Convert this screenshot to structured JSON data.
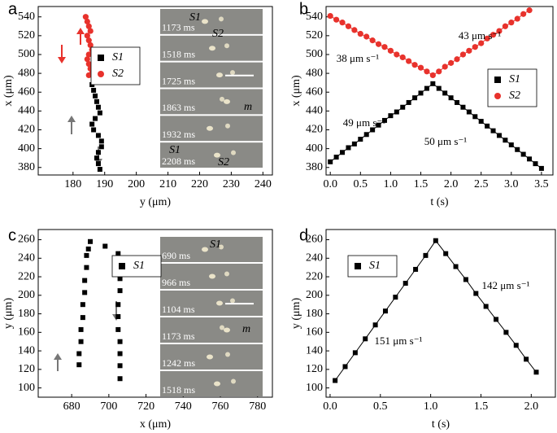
{
  "chart_data": [
    {
      "type": "scatter",
      "panel_label": "a",
      "xlabel": "y (μm)",
      "ylabel": "x (μm)",
      "xlim": [
        169,
        243
      ],
      "xticks": [
        180,
        190,
        200,
        210,
        220,
        230,
        240
      ],
      "ylim": [
        372,
        551
      ],
      "yticks": [
        380,
        400,
        420,
        440,
        460,
        480,
        500,
        520,
        540
      ],
      "series": [
        {
          "name": "S1",
          "color": "#000000",
          "marker": "square",
          "x": [
            186,
            186.5,
            187,
            187.5,
            188,
            188.5,
            187,
            186,
            186.5,
            188,
            189,
            189,
            188,
            187.5,
            188,
            188.5
          ],
          "values": [
            468,
            462,
            456,
            450,
            444,
            438,
            432,
            426,
            420,
            414,
            408,
            402,
            396,
            390,
            384,
            378
          ]
        },
        {
          "name": "S2",
          "color": "#e8322c",
          "marker": "circle",
          "x": [
            184,
            184.5,
            185,
            185.5,
            184.5,
            185,
            185.5,
            186,
            185,
            184.5,
            185,
            185.5,
            186,
            185
          ],
          "values": [
            540,
            535,
            530,
            525,
            520,
            515,
            510,
            505,
            500,
            495,
            490,
            485,
            480,
            478
          ]
        }
      ],
      "inset_labels": [
        "1173 ms",
        "1518 ms",
        "1725 ms",
        "1863 ms",
        "1932 ms",
        "2208 ms"
      ],
      "inset_notes": [
        "S1",
        "S2",
        "S1",
        "S2",
        "m"
      ]
    },
    {
      "type": "line",
      "panel_label": "b",
      "xlabel": "t (s)",
      "ylabel": "x (μm)",
      "xlim": [
        -0.07,
        3.69
      ],
      "xticks": [
        {
          "value": 0,
          "label": "0.0"
        },
        0.5,
        {
          "value": 1,
          "label": "1.0"
        },
        1.5,
        {
          "value": 2,
          "label": "2.0"
        },
        2.5,
        {
          "value": 3,
          "label": "3.0"
        },
        3.5
      ],
      "ylim": [
        372,
        551
      ],
      "yticks": [
        380,
        400,
        420,
        440,
        460,
        480,
        500,
        520,
        540
      ],
      "series": [
        {
          "name": "S1",
          "color": "#000000",
          "marker": "square",
          "x": [
            0,
            0.1,
            0.2,
            0.3,
            0.4,
            0.5,
            0.6,
            0.7,
            0.8,
            0.9,
            1,
            1.1,
            1.2,
            1.3,
            1.4,
            1.5,
            1.6,
            1.7,
            1.8,
            1.9,
            2,
            2.1,
            2.2,
            2.3,
            2.4,
            2.5,
            2.6,
            2.7,
            2.8,
            2.9,
            3,
            3.1,
            3.2,
            3.3,
            3.4,
            3.5
          ],
          "values": [
            386,
            391,
            396,
            401,
            405,
            410,
            415,
            420,
            425,
            430,
            435,
            439,
            444,
            449,
            454,
            459,
            464,
            469,
            464,
            459,
            454,
            449,
            444,
            439,
            434,
            429,
            424,
            419,
            414,
            409,
            404,
            399,
            394,
            389,
            384,
            379
          ]
        },
        {
          "name": "S2",
          "color": "#e8322c",
          "marker": "circle",
          "x": [
            0,
            0.1,
            0.2,
            0.3,
            0.4,
            0.5,
            0.6,
            0.7,
            0.8,
            0.9,
            1,
            1.1,
            1.2,
            1.3,
            1.4,
            1.5,
            1.6,
            1.7,
            1.8,
            1.9,
            2,
            2.1,
            2.2,
            2.3,
            2.4,
            2.5,
            2.6,
            2.7,
            2.8,
            2.9,
            3,
            3.1,
            3.2,
            3.3
          ],
          "values": [
            541,
            537,
            534,
            530,
            526,
            522,
            519,
            515,
            511,
            508,
            504,
            500,
            497,
            493,
            489,
            486,
            482,
            478,
            482,
            487,
            491,
            495,
            500,
            504,
            508,
            512,
            517,
            521,
            525,
            530,
            534,
            538,
            543,
            547
          ]
        }
      ],
      "annotations": [
        "43 μm s⁻¹",
        "38 μm s⁻¹",
        "49 μm s⁻¹",
        "50 μm s⁻¹"
      ]
    },
    {
      "type": "scatter",
      "panel_label": "c",
      "xlabel": "x (μm)",
      "ylabel": "y (μm)",
      "xlim": [
        662,
        788
      ],
      "xticks": [
        680,
        700,
        720,
        740,
        760,
        780
      ],
      "ylim": [
        90,
        271
      ],
      "yticks": [
        100,
        120,
        140,
        160,
        180,
        200,
        220,
        240,
        260
      ],
      "series": [
        {
          "name": "S1",
          "color": "#000000",
          "marker": "square",
          "x": [
            684,
            684,
            685,
            685,
            686,
            686,
            687,
            687,
            688,
            688,
            689,
            690,
            698,
            705,
            705,
            706,
            706,
            705,
            705,
            705,
            706,
            706,
            706,
            706
          ],
          "values": [
            125,
            137,
            150,
            163,
            176,
            190,
            203,
            216,
            230,
            243,
            250,
            258,
            253,
            245,
            230,
            218,
            205,
            190,
            177,
            163,
            150,
            137,
            124,
            110
          ]
        }
      ],
      "inset_labels": [
        "690 ms",
        "966 ms",
        "1104 ms",
        "1173 ms",
        "1242 ms",
        "1518 ms"
      ],
      "inset_notes": [
        "S1",
        "m"
      ]
    },
    {
      "type": "line",
      "panel_label": "d",
      "xlabel": "t (s)",
      "ylabel": "y (μm)",
      "xlim": [
        -0.04,
        2.24
      ],
      "xticks": [
        {
          "value": 0,
          "label": "0.0"
        },
        0.5,
        {
          "value": 1,
          "label": "1.0"
        },
        1.5,
        {
          "value": 2,
          "label": "2.0"
        }
      ],
      "ylim": [
        90,
        271
      ],
      "yticks": [
        100,
        120,
        140,
        160,
        180,
        200,
        220,
        240,
        260
      ],
      "series": [
        {
          "name": "S1",
          "color": "#000000",
          "marker": "square",
          "x": [
            0.05,
            0.15,
            0.25,
            0.35,
            0.45,
            0.55,
            0.65,
            0.75,
            0.85,
            0.95,
            1.05,
            1.15,
            1.25,
            1.35,
            1.45,
            1.55,
            1.65,
            1.75,
            1.85,
            1.95,
            2.05
          ],
          "values": [
            108,
            123,
            138,
            153,
            168,
            183,
            198,
            213,
            228,
            243,
            259,
            245,
            231,
            217,
            202,
            188,
            174,
            160,
            146,
            131,
            117
          ]
        }
      ],
      "annotations": [
        "151 μm s⁻¹",
        "142 μm s⁻¹"
      ]
    }
  ]
}
